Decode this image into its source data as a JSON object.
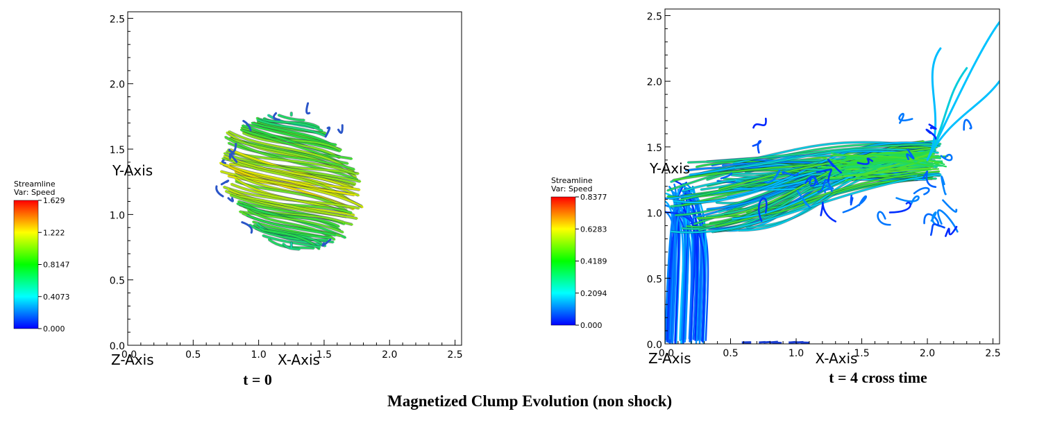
{
  "figure": {
    "title": "Magnetized Clump Evolution (non shock)"
  },
  "chart_data": [
    {
      "type": "scatter",
      "caption": "t = 0",
      "xlabel": "X-Axis",
      "ylabel": "Y-Axis",
      "zlabel": "Z-Axis",
      "xlim": [
        0.0,
        2.55
      ],
      "ylim": [
        0.0,
        2.55
      ],
      "xticks": [
        "0.0",
        "0.5",
        "1.0",
        "1.5",
        "2.0",
        "2.5"
      ],
      "yticks": [
        "0.0",
        "0.5",
        "1.0",
        "1.5",
        "2.0",
        "2.5"
      ],
      "legend": {
        "title": "Streamline",
        "variable": "Var: Speed",
        "ticks": [
          "1.629",
          "1.222",
          "0.8147",
          "0.4073",
          "0.000"
        ],
        "colors": [
          "#ff0000",
          "#ffff00",
          "#00ff00",
          "#00ffff",
          "#0000ff"
        ]
      },
      "structure": {
        "description_shape": "clump",
        "center": [
          1.25,
          1.25
        ],
        "radius": 0.5,
        "dominant_color": "#3fbf6f"
      }
    },
    {
      "type": "scatter",
      "caption": "t = 4 cross time",
      "xlabel": "X-Axis",
      "ylabel": "Y-Axis",
      "zlabel": "Z-Axis",
      "xlim": [
        0.0,
        2.55
      ],
      "ylim": [
        0.0,
        2.55
      ],
      "xticks": [
        "0.0",
        "0.5",
        "1.0",
        "1.5",
        "2.0",
        "2.5"
      ],
      "yticks": [
        "0.0",
        "0.5",
        "1.0",
        "1.5",
        "2.0",
        "2.5"
      ],
      "legend": {
        "title": "Streamline",
        "variable": "Var: Speed",
        "ticks": [
          "0.8377",
          "0.6283",
          "0.4189",
          "0.2094",
          "0.000"
        ],
        "colors": [
          "#ff0000",
          "#ffff00",
          "#00ff00",
          "#00ffff",
          "#0000ff"
        ]
      },
      "structure": {
        "description_shape": "stretched",
        "head": [
          2.0,
          1.4
        ],
        "dominant_color": "#2b6fd6"
      }
    }
  ]
}
